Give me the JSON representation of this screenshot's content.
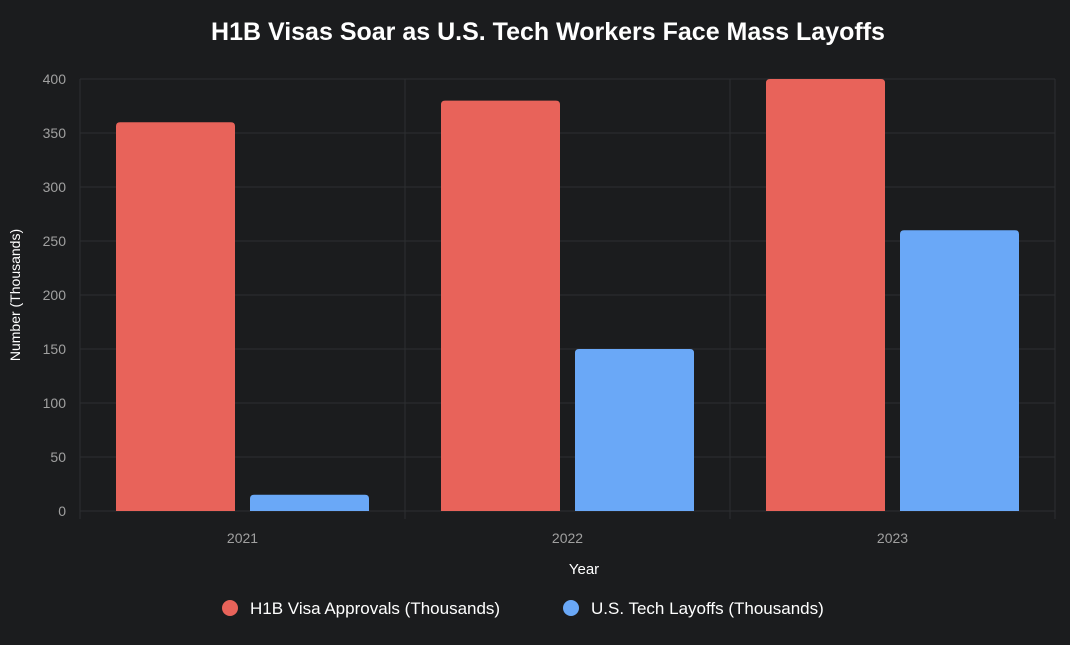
{
  "chart_data": {
    "type": "bar",
    "title": "H1B Visas Soar as U.S. Tech Workers Face Mass Layoffs",
    "xlabel": "Year",
    "ylabel": "Number (Thousands)",
    "categories": [
      "2021",
      "2022",
      "2023"
    ],
    "ylim": [
      0,
      400
    ],
    "yticks": [
      0,
      50,
      100,
      150,
      200,
      250,
      300,
      350,
      400
    ],
    "grid": true,
    "legend_position": "bottom",
    "series": [
      {
        "name": "H1B Visa Approvals (Thousands)",
        "values": [
          360,
          380,
          400
        ],
        "color": "#e8635a"
      },
      {
        "name": "U.S. Tech Layoffs (Thousands)",
        "values": [
          15,
          150,
          260
        ],
        "color": "#6aa8f7"
      }
    ]
  }
}
